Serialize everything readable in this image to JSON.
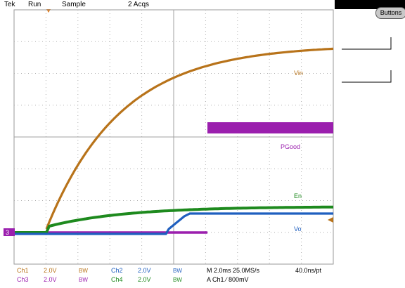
{
  "header": {
    "brand": "Tek",
    "run_state": "Run",
    "acq_mode": "Sample",
    "acq_count": "2 Acqs"
  },
  "side_menu": {
    "buttons_label": "Buttons"
  },
  "trace_labels": {
    "vin": "Vin",
    "pgood": "PGood",
    "en": "En",
    "vo": "Vo"
  },
  "channel_readout": {
    "ch1": {
      "name": "Ch1",
      "scale": "2.0V",
      "bw": "BW"
    },
    "ch2": {
      "name": "Ch2",
      "scale": "2.0V",
      "bw": "BW"
    },
    "ch3": {
      "name": "Ch3",
      "scale": "2.0V",
      "bw": "BW"
    },
    "ch4": {
      "name": "Ch4",
      "scale": "2.0V",
      "bw": "BW"
    },
    "timebase": "M 2.0ms 25.0MS/s",
    "resolution": "40.0ns/pt",
    "trigger": "A  Ch1  ∕  800mV"
  },
  "colors": {
    "ch1": "#b8731a",
    "ch2": "#1f5fbf",
    "ch3": "#9b1fae",
    "ch4": "#1e8a1e",
    "trigger_marker": "#e07a1a"
  },
  "chart_data": {
    "type": "line",
    "x_divisions": 10,
    "y_divisions": 8,
    "series": [
      {
        "name": "Vin",
        "values": [
          0.06,
          0.21,
          0.34,
          0.44,
          0.52,
          0.58,
          0.63,
          0.66,
          0.69,
          0.71
        ]
      },
      {
        "name": "PGood",
        "values": [
          0,
          0,
          0,
          0,
          0,
          0,
          1,
          1,
          1,
          1
        ]
      },
      {
        "name": "En",
        "values": [
          0.05,
          0.11,
          0.16,
          0.2,
          0.22,
          0.23,
          0.24,
          0.24,
          0.25,
          0.25
        ]
      },
      {
        "name": "Vo",
        "values": [
          0,
          0,
          0,
          0,
          0,
          0.05,
          0.22,
          0.22,
          0.22,
          0.22
        ]
      }
    ]
  }
}
